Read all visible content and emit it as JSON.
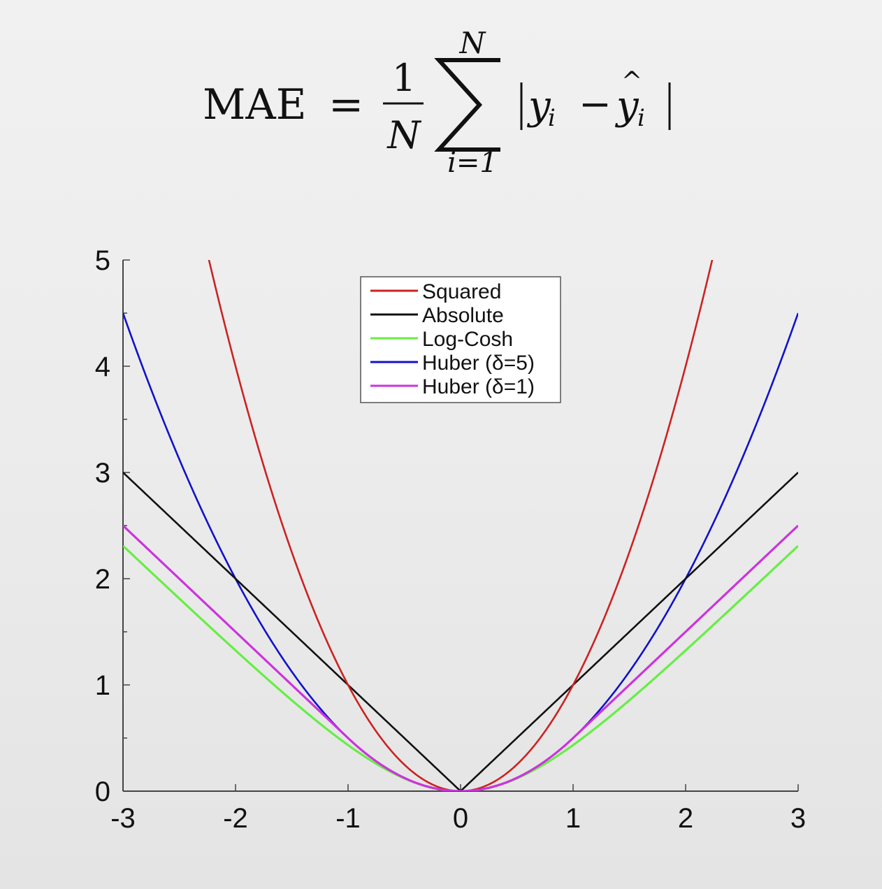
{
  "formula": {
    "lhs": "MAE",
    "eq": "=",
    "one": "1",
    "n_den": "N",
    "sum_upper": "N",
    "sum_lower": "i=1"
  },
  "chart_data": {
    "type": "line",
    "xlim": [
      -3,
      3
    ],
    "ylim": [
      0,
      5
    ],
    "x_ticks": [
      -3,
      -2,
      -1,
      0,
      1,
      2,
      3
    ],
    "x_tick_labels": [
      "-3",
      "-2",
      "-1",
      "0",
      "1",
      "2",
      "3"
    ],
    "y_ticks": [
      0,
      1,
      2,
      3,
      4,
      5
    ],
    "y_tick_labels": [
      "0",
      "1",
      "2",
      "3",
      "4",
      "5"
    ],
    "y_minor_step": 0.5,
    "grid": false,
    "legend_position": "top-center",
    "title": "",
    "xlabel": "",
    "ylabel": "",
    "series": [
      {
        "name": "Squared",
        "color": "#cc2222",
        "loss": "squared"
      },
      {
        "name": "Absolute",
        "color": "#111111",
        "loss": "absolute"
      },
      {
        "name": "Log-Cosh",
        "color": "#66ee44",
        "loss": "logcosh"
      },
      {
        "name": "Huber (δ=5)",
        "color": "#1111cc",
        "loss": "huber",
        "delta": 5
      },
      {
        "name": "Huber (δ=1)",
        "color": "#cc33dd",
        "loss": "huber",
        "delta": 1
      }
    ]
  }
}
